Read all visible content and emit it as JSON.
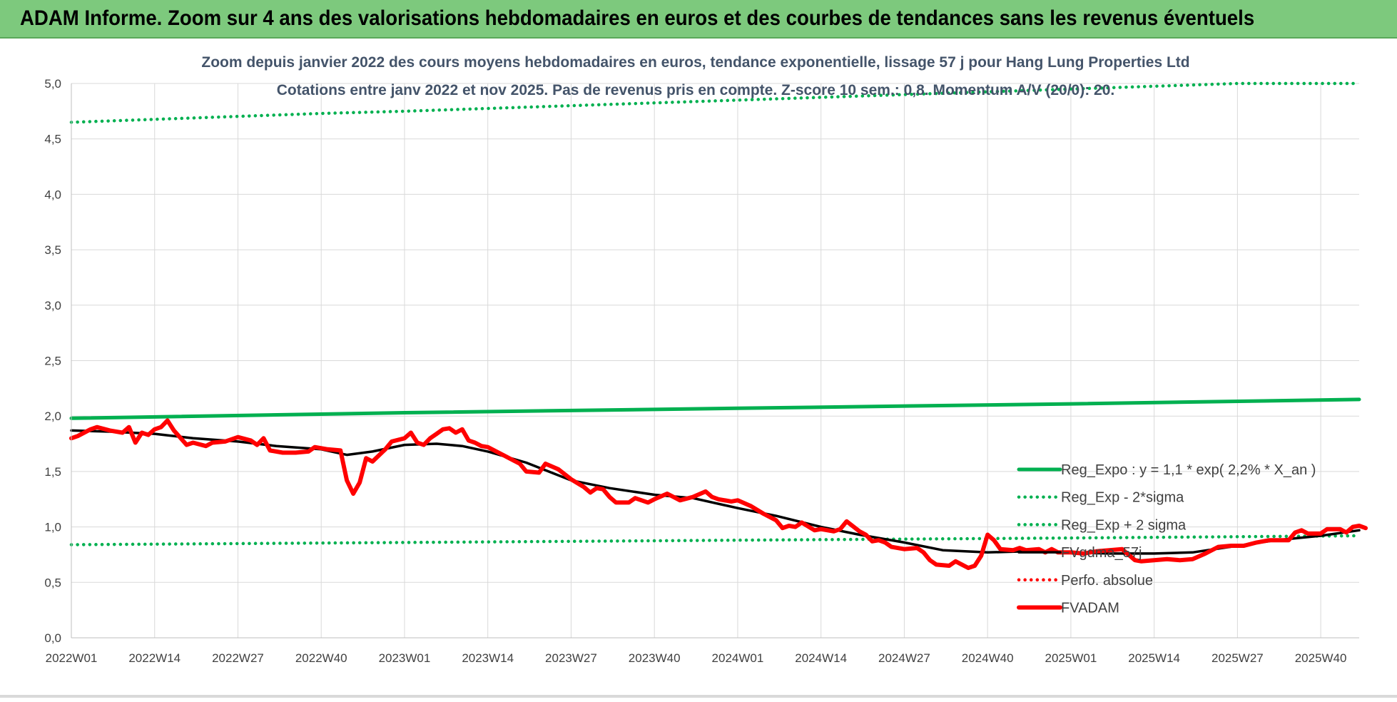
{
  "banner": {
    "title": "ADAM Informe. Zoom sur 4 ans des valorisations hebdomadaires en euros et des courbes de tendances sans les revenus éventuels"
  },
  "colors": {
    "banner_bg": "#7dc97d",
    "trend_green": "#00b050",
    "price_red": "#ff0000",
    "smooth_black": "#000000",
    "grid": "#d9d9d9",
    "title_text": "#44546a"
  },
  "chart_data": {
    "type": "line",
    "title": "Zoom depuis janvier 2022 des cours moyens hebdomadaires en euros, tendance exponentielle, lissage 57 j pour Hang Lung Properties Ltd",
    "subtitle": "Cotations entre janv 2022 et nov 2025. Pas de revenus pris en compte. Z-score 10 sem.: 0,8. Momentum A/V (20/0): 20.",
    "xlabel": "",
    "ylabel": "",
    "ylim": [
      0,
      5
    ],
    "yticks": [
      "0,0",
      "0,5",
      "1,0",
      "1,5",
      "2,0",
      "2,5",
      "3,0",
      "3,5",
      "4,0",
      "4,5",
      "5,0"
    ],
    "xticks": [
      "2022W01",
      "2022W14",
      "2022W27",
      "2022W40",
      "2023W01",
      "2023W14",
      "2023W27",
      "2023W40",
      "2024W01",
      "2024W14",
      "2024W27",
      "2024W40",
      "2025W01",
      "2025W14",
      "2025W27",
      "2025W40"
    ],
    "grid": "vertical and horizontal",
    "legend_position": "right",
    "x_range": [
      "2022W01",
      "2025W46"
    ],
    "series": [
      {
        "name": "Reg_Expo : y = 1,1 * exp( 2,2% *  X_an )",
        "style": "solid-thick",
        "color": "#00b050",
        "points": [
          [
            "2022W01",
            1.98
          ],
          [
            "2023W01",
            2.03
          ],
          [
            "2024W01",
            2.07
          ],
          [
            "2025W01",
            2.11
          ],
          [
            "2025W46",
            2.15
          ]
        ]
      },
      {
        "name": "Reg_Exp - 2*sigma",
        "style": "dotted",
        "color": "#00b050",
        "points": [
          [
            "2022W01",
            0.84
          ],
          [
            "2023W01",
            0.86
          ],
          [
            "2024W01",
            0.88
          ],
          [
            "2025W01",
            0.9
          ],
          [
            "2025W46",
            0.92
          ]
        ]
      },
      {
        "name": "Reg_Exp + 2 sigma",
        "style": "dotted",
        "color": "#00b050",
        "points": [
          [
            "2022W01",
            4.65
          ],
          [
            "2022W40",
            4.73
          ],
          [
            "2023W01",
            4.75
          ],
          [
            "2025W27",
            5.0
          ],
          [
            "2025W46",
            5.0
          ]
        ]
      },
      {
        "name": "FVgdma_57j",
        "style": "solid",
        "color": "#000000",
        "points": [
          [
            "2022W01",
            1.87
          ],
          [
            "2022W07",
            1.86
          ],
          [
            "2022W14",
            1.84
          ],
          [
            "2022W20",
            1.8
          ],
          [
            "2022W27",
            1.77
          ],
          [
            "2022W33",
            1.73
          ],
          [
            "2022W40",
            1.7
          ],
          [
            "2022W44",
            1.65
          ],
          [
            "2022W48",
            1.68
          ],
          [
            "2023W01",
            1.74
          ],
          [
            "2023W06",
            1.75
          ],
          [
            "2023W10",
            1.73
          ],
          [
            "2023W14",
            1.68
          ],
          [
            "2023W20",
            1.58
          ],
          [
            "2023W27",
            1.42
          ],
          [
            "2023W33",
            1.35
          ],
          [
            "2023W40",
            1.29
          ],
          [
            "2023W46",
            1.26
          ],
          [
            "2024W01",
            1.17
          ],
          [
            "2024W07",
            1.1
          ],
          [
            "2024W14",
            1.0
          ],
          [
            "2024W20",
            0.93
          ],
          [
            "2024W27",
            0.86
          ],
          [
            "2024W33",
            0.79
          ],
          [
            "2024W40",
            0.77
          ],
          [
            "2024W46",
            0.78
          ],
          [
            "2025W01",
            0.77
          ],
          [
            "2025W07",
            0.76
          ],
          [
            "2025W14",
            0.76
          ],
          [
            "2025W20",
            0.77
          ],
          [
            "2025W27",
            0.83
          ],
          [
            "2025W33",
            0.88
          ],
          [
            "2025W40",
            0.92
          ],
          [
            "2025W46",
            0.97
          ]
        ]
      },
      {
        "name": "Perfo. absolue",
        "style": "dotted",
        "color": "#ff0000",
        "points": []
      },
      {
        "name": "FVADAM",
        "style": "solid-thick",
        "color": "#ff0000",
        "points": [
          [
            "2022W01",
            1.8
          ],
          [
            "2022W02",
            1.82
          ],
          [
            "2022W04",
            1.88
          ],
          [
            "2022W05",
            1.9
          ],
          [
            "2022W07",
            1.87
          ],
          [
            "2022W09",
            1.85
          ],
          [
            "2022W10",
            1.9
          ],
          [
            "2022W11",
            1.76
          ],
          [
            "2022W12",
            1.85
          ],
          [
            "2022W13",
            1.83
          ],
          [
            "2022W14",
            1.88
          ],
          [
            "2022W15",
            1.9
          ],
          [
            "2022W16",
            1.96
          ],
          [
            "2022W17",
            1.87
          ],
          [
            "2022W19",
            1.74
          ],
          [
            "2022W20",
            1.76
          ],
          [
            "2022W22",
            1.73
          ],
          [
            "2022W23",
            1.76
          ],
          [
            "2022W25",
            1.77
          ],
          [
            "2022W27",
            1.81
          ],
          [
            "2022W29",
            1.78
          ],
          [
            "2022W30",
            1.74
          ],
          [
            "2022W31",
            1.8
          ],
          [
            "2022W32",
            1.69
          ],
          [
            "2022W34",
            1.67
          ],
          [
            "2022W36",
            1.67
          ],
          [
            "2022W38",
            1.68
          ],
          [
            "2022W39",
            1.72
          ],
          [
            "2022W41",
            1.7
          ],
          [
            "2022W43",
            1.69
          ],
          [
            "2022W44",
            1.42
          ],
          [
            "2022W45",
            1.3
          ],
          [
            "2022W46",
            1.4
          ],
          [
            "2022W47",
            1.62
          ],
          [
            "2022W48",
            1.59
          ],
          [
            "2022W50",
            1.7
          ],
          [
            "2022W51",
            1.77
          ],
          [
            "2023W01",
            1.8
          ],
          [
            "2023W02",
            1.85
          ],
          [
            "2023W03",
            1.76
          ],
          [
            "2023W04",
            1.74
          ],
          [
            "2023W05",
            1.8
          ],
          [
            "2023W06",
            1.84
          ],
          [
            "2023W07",
            1.88
          ],
          [
            "2023W08",
            1.89
          ],
          [
            "2023W09",
            1.85
          ],
          [
            "2023W10",
            1.88
          ],
          [
            "2023W11",
            1.78
          ],
          [
            "2023W12",
            1.76
          ],
          [
            "2023W13",
            1.73
          ],
          [
            "2023W14",
            1.72
          ],
          [
            "2023W16",
            1.66
          ],
          [
            "2023W18",
            1.6
          ],
          [
            "2023W19",
            1.57
          ],
          [
            "2023W20",
            1.5
          ],
          [
            "2023W22",
            1.49
          ],
          [
            "2023W23",
            1.57
          ],
          [
            "2023W25",
            1.52
          ],
          [
            "2023W27",
            1.43
          ],
          [
            "2023W29",
            1.36
          ],
          [
            "2023W30",
            1.31
          ],
          [
            "2023W31",
            1.35
          ],
          [
            "2023W32",
            1.34
          ],
          [
            "2023W33",
            1.27
          ],
          [
            "2023W34",
            1.22
          ],
          [
            "2023W36",
            1.22
          ],
          [
            "2023W37",
            1.26
          ],
          [
            "2023W38",
            1.24
          ],
          [
            "2023W39",
            1.22
          ],
          [
            "2023W40",
            1.25
          ],
          [
            "2023W42",
            1.3
          ],
          [
            "2023W44",
            1.24
          ],
          [
            "2023W46",
            1.27
          ],
          [
            "2023W48",
            1.32
          ],
          [
            "2023W49",
            1.27
          ],
          [
            "2023W50",
            1.25
          ],
          [
            "2023W52",
            1.23
          ],
          [
            "2024W01",
            1.24
          ],
          [
            "2024W03",
            1.19
          ],
          [
            "2024W05",
            1.12
          ],
          [
            "2024W07",
            1.06
          ],
          [
            "2024W08",
            0.99
          ],
          [
            "2024W09",
            1.01
          ],
          [
            "2024W10",
            1.0
          ],
          [
            "2024W11",
            1.04
          ],
          [
            "2024W13",
            0.97
          ],
          [
            "2024W14",
            0.98
          ],
          [
            "2024W16",
            0.96
          ],
          [
            "2024W17",
            0.98
          ],
          [
            "2024W18",
            1.05
          ],
          [
            "2024W20",
            0.96
          ],
          [
            "2024W21",
            0.93
          ],
          [
            "2024W22",
            0.87
          ],
          [
            "2024W23",
            0.88
          ],
          [
            "2024W24",
            0.86
          ],
          [
            "2024W25",
            0.82
          ],
          [
            "2024W27",
            0.8
          ],
          [
            "2024W29",
            0.81
          ],
          [
            "2024W30",
            0.77
          ],
          [
            "2024W31",
            0.7
          ],
          [
            "2024W32",
            0.66
          ],
          [
            "2024W34",
            0.65
          ],
          [
            "2024W35",
            0.69
          ],
          [
            "2024W36",
            0.66
          ],
          [
            "2024W37",
            0.63
          ],
          [
            "2024W38",
            0.65
          ],
          [
            "2024W39",
            0.74
          ],
          [
            "2024W40",
            0.93
          ],
          [
            "2024W41",
            0.88
          ],
          [
            "2024W42",
            0.8
          ],
          [
            "2024W44",
            0.79
          ],
          [
            "2024W45",
            0.81
          ],
          [
            "2024W46",
            0.79
          ],
          [
            "2024W48",
            0.8
          ],
          [
            "2024W49",
            0.77
          ],
          [
            "2024W50",
            0.8
          ],
          [
            "2024W51",
            0.77
          ],
          [
            "2025W01",
            0.77
          ],
          [
            "2025W03",
            0.76
          ],
          [
            "2025W05",
            0.78
          ],
          [
            "2025W07",
            0.79
          ],
          [
            "2025W09",
            0.8
          ],
          [
            "2025W10",
            0.75
          ],
          [
            "2025W11",
            0.7
          ],
          [
            "2025W12",
            0.69
          ],
          [
            "2025W14",
            0.7
          ],
          [
            "2025W16",
            0.71
          ],
          [
            "2025W18",
            0.7
          ],
          [
            "2025W20",
            0.71
          ],
          [
            "2025W22",
            0.76
          ],
          [
            "2025W24",
            0.82
          ],
          [
            "2025W26",
            0.83
          ],
          [
            "2025W28",
            0.83
          ],
          [
            "2025W30",
            0.86
          ],
          [
            "2025W32",
            0.88
          ],
          [
            "2025W35",
            0.88
          ],
          [
            "2025W36",
            0.95
          ],
          [
            "2025W37",
            0.97
          ],
          [
            "2025W38",
            0.94
          ],
          [
            "2025W40",
            0.94
          ],
          [
            "2025W41",
            0.98
          ],
          [
            "2025W43",
            0.98
          ],
          [
            "2025W44",
            0.95
          ],
          [
            "2025W45",
            1.0
          ],
          [
            "2025W46",
            1.01
          ],
          [
            "2025W47",
            0.99
          ]
        ]
      }
    ],
    "legend_labels": [
      "Reg_Expo : y = 1,1 * exp( 2,2% *  X_an )",
      "Reg_Exp - 2*sigma",
      "Reg_Exp + 2 sigma",
      "FVgdma_57j",
      "Perfo. absolue",
      "FVADAM"
    ]
  }
}
